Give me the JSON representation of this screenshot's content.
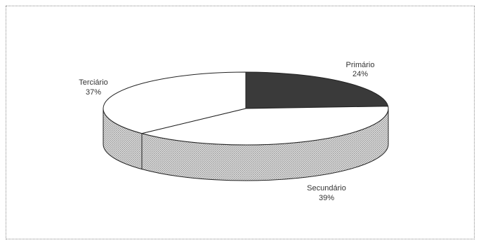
{
  "chart_data": {
    "type": "pie",
    "style": "3d",
    "categories": [
      "Primário",
      "Secundário",
      "Terciário"
    ],
    "values": [
      24,
      39,
      37
    ],
    "value_labels": [
      "24%",
      "39%",
      "37%"
    ],
    "colors": {
      "Primário": "#3a3a3a",
      "Secundário": "#ffffff",
      "Terciário": "#ffffff",
      "side_shade": "#c4c4c4"
    },
    "title": "",
    "legend": "none"
  }
}
